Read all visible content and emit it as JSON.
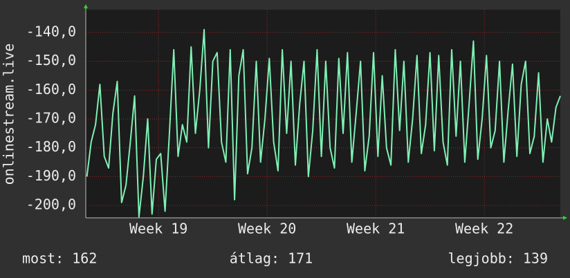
{
  "chart_data": {
    "type": "line",
    "ylabel": "onlinestream.live",
    "xlim": [
      18.33,
      22.7
    ],
    "xticks": [
      {
        "value": 19,
        "label": "Week 19"
      },
      {
        "value": 20,
        "label": "Week 20"
      },
      {
        "value": 21,
        "label": "Week 21"
      },
      {
        "value": 22,
        "label": "Week 22"
      }
    ],
    "ylim": [
      -204.3,
      -132.1
    ],
    "yticks": [
      {
        "value": -200,
        "label": "-200,0"
      },
      {
        "value": -190,
        "label": "-190,0"
      },
      {
        "value": -180,
        "label": "-180,0"
      },
      {
        "value": -170,
        "label": "-170,0"
      },
      {
        "value": -160,
        "label": "-160,0"
      },
      {
        "value": -150,
        "label": "-150,0"
      },
      {
        "value": -140,
        "label": "-140,0"
      }
    ],
    "grid": true,
    "x": [
      18.34,
      18.38,
      18.42,
      18.46,
      18.5,
      18.54,
      18.58,
      18.62,
      18.66,
      18.7,
      18.74,
      18.78,
      18.82,
      18.86,
      18.9,
      18.94,
      18.98,
      19.02,
      19.06,
      19.1,
      19.14,
      19.18,
      19.22,
      19.26,
      19.3,
      19.34,
      19.38,
      19.42,
      19.46,
      19.5,
      19.54,
      19.58,
      19.62,
      19.66,
      19.7,
      19.74,
      19.78,
      19.82,
      19.86,
      19.9,
      19.94,
      19.98,
      20.02,
      20.06,
      20.1,
      20.14,
      20.18,
      20.22,
      20.26,
      20.3,
      20.34,
      20.38,
      20.42,
      20.46,
      20.5,
      20.54,
      20.58,
      20.62,
      20.66,
      20.7,
      20.74,
      20.78,
      20.82,
      20.86,
      20.9,
      20.94,
      20.98,
      21.02,
      21.06,
      21.1,
      21.14,
      21.18,
      21.22,
      21.26,
      21.3,
      21.34,
      21.38,
      21.42,
      21.46,
      21.5,
      21.54,
      21.58,
      21.62,
      21.66,
      21.7,
      21.74,
      21.78,
      21.82,
      21.86,
      21.9,
      21.94,
      21.98,
      22.02,
      22.06,
      22.1,
      22.14,
      22.18,
      22.22,
      22.26,
      22.3,
      22.34,
      22.38,
      22.42,
      22.46,
      22.5,
      22.54,
      22.58,
      22.62,
      22.66,
      22.7
    ],
    "series": [
      {
        "color": "#7ff0b4",
        "values": [
          -190,
          -178,
          -172,
          -158,
          -183,
          -187,
          -168,
          -157,
          -199,
          -193,
          -178,
          -162,
          -204,
          -190,
          -170,
          -203,
          -184,
          -182,
          -202,
          -175,
          -146,
          -183,
          -172,
          -178,
          -145,
          -175,
          -160,
          -139,
          -180,
          -150,
          -147,
          -178,
          -185,
          -146,
          -198,
          -155,
          -146,
          -189,
          -180,
          -150,
          -185,
          -170,
          -149,
          -178,
          -188,
          -146,
          -175,
          -150,
          -186,
          -165,
          -150,
          -190,
          -174,
          -146,
          -183,
          -150,
          -180,
          -187,
          -149,
          -175,
          -147,
          -185,
          -168,
          -150,
          -188,
          -176,
          -147,
          -183,
          -155,
          -180,
          -186,
          -146,
          -174,
          -150,
          -185,
          -170,
          -148,
          -182,
          -172,
          -147,
          -181,
          -148,
          -178,
          -186,
          -146,
          -176,
          -150,
          -185,
          -165,
          -143,
          -184,
          -170,
          -148,
          -180,
          -174,
          -150,
          -185,
          -167,
          -151,
          -183,
          -158,
          -150,
          -182,
          -176,
          -154,
          -185,
          -170,
          -178,
          -166,
          -162
        ]
      }
    ],
    "footer": [
      "most: 162",
      "átlag: 171",
      "legjobb: 139"
    ]
  }
}
